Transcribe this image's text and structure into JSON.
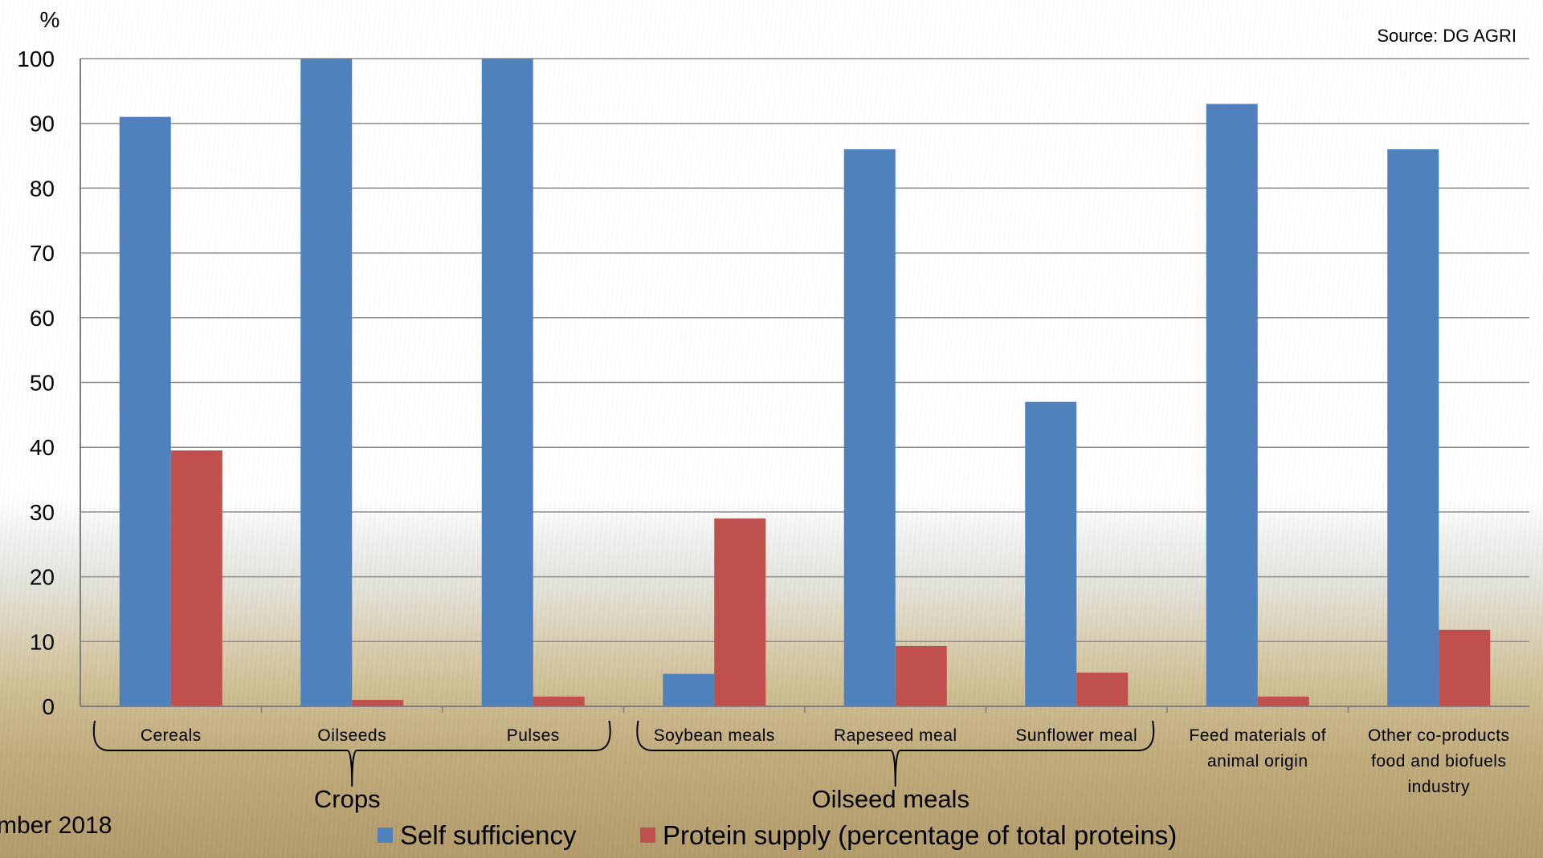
{
  "chart_data": {
    "type": "bar",
    "ylabel": "%",
    "ylim": [
      0,
      100
    ],
    "yticks": [
      0,
      10,
      20,
      30,
      40,
      50,
      60,
      70,
      80,
      90,
      100
    ],
    "grid": true,
    "categories": [
      [
        "Cereals"
      ],
      [
        "Oilseeds"
      ],
      [
        "Pulses"
      ],
      [
        "Soybean meals"
      ],
      [
        "Rapeseed meal"
      ],
      [
        "Sunflower meal"
      ],
      [
        "Feed materials of",
        "animal origin"
      ],
      [
        "Other co-products",
        "food and biofuels",
        "industry"
      ]
    ],
    "series": [
      {
        "name": "Self sufficiency",
        "color": "#4f81bd",
        "values": [
          91,
          100,
          100,
          5,
          86,
          47,
          93,
          86
        ]
      },
      {
        "name": "Protein supply (percentage of total proteins)",
        "color": "#c0504d",
        "values": [
          39.5,
          1,
          1.5,
          29,
          9.3,
          5.2,
          1.5,
          11.8
        ]
      }
    ],
    "groups": [
      {
        "label": "Crops",
        "from": 0,
        "to": 2
      },
      {
        "label": "Oilseed meals",
        "from": 3,
        "to": 5
      }
    ],
    "source": "Source: DG AGRI",
    "legend_position": "bottom"
  },
  "footer": {
    "date_text": "mber 2018"
  }
}
